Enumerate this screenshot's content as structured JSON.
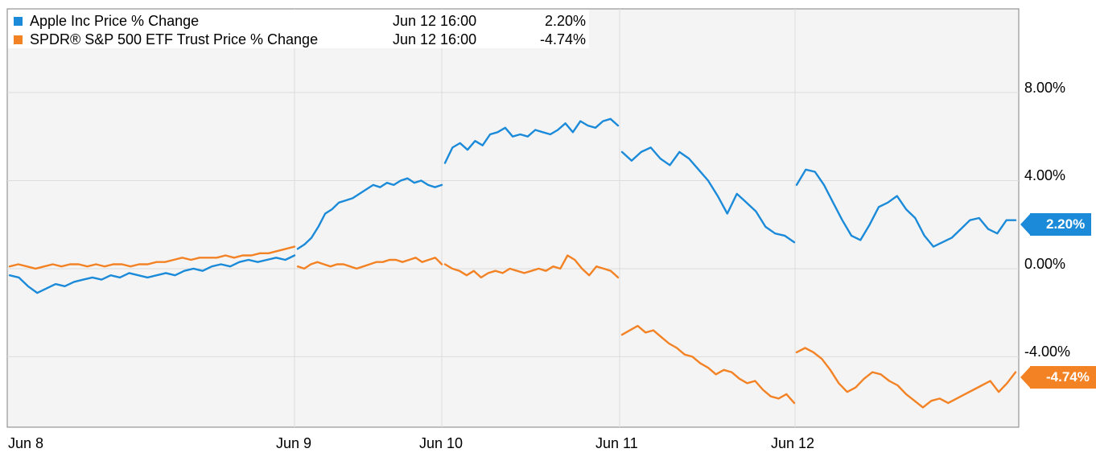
{
  "legend": [
    {
      "name": "Apple Inc Price % Change",
      "date": "Jun 12 16:00",
      "value": "2.20%",
      "color": "#1a8ad9"
    },
    {
      "name": "SPDR® S&P 500 ETF Trust Price % Change",
      "date": "Jun 12 16:00",
      "value": "-4.74%",
      "color": "#f38224"
    }
  ],
  "end_tags": {
    "aapl": "2.20%",
    "spy": "-4.74%"
  },
  "chart_data": {
    "type": "line",
    "ylim": [
      -7.2,
      11.8
    ],
    "yticks": [
      {
        "value": 8,
        "label": "8.00%"
      },
      {
        "value": 4,
        "label": "4.00%"
      },
      {
        "value": 0,
        "label": "0.00%"
      },
      {
        "value": -4,
        "label": "-4.00%"
      }
    ],
    "xticks": [
      "Jun 8",
      "Jun 9",
      "Jun 10",
      "Jun 11",
      "Jun 12"
    ],
    "grid": true,
    "series": [
      {
        "name": "Apple Inc Price % Change",
        "color": "#1a8ad9",
        "days": [
          [
            -0.3,
            -0.4,
            -0.8,
            -1.1,
            -0.9,
            -0.7,
            -0.8,
            -0.6,
            -0.5,
            -0.4,
            -0.5,
            -0.3,
            -0.4,
            -0.2,
            -0.3,
            -0.4,
            -0.3,
            -0.2,
            -0.3,
            -0.1,
            0.0,
            -0.1,
            0.1,
            0.2,
            0.1,
            0.3,
            0.4,
            0.3,
            0.4,
            0.5,
            0.4,
            0.6
          ],
          [
            0.9,
            1.1,
            1.4,
            1.9,
            2.5,
            2.7,
            3.0,
            3.1,
            3.2,
            3.4,
            3.6,
            3.8,
            3.7,
            3.9,
            3.8,
            4.0,
            4.1,
            3.9,
            4.0,
            3.8,
            3.7,
            3.8
          ],
          [
            4.8,
            5.5,
            5.7,
            5.4,
            5.8,
            5.6,
            6.1,
            6.2,
            6.4,
            6.0,
            6.1,
            6.0,
            6.3,
            6.2,
            6.1,
            6.3,
            6.6,
            6.2,
            6.7,
            6.5,
            6.4,
            6.7,
            6.8,
            6.5
          ],
          [
            5.3,
            4.9,
            5.3,
            5.5,
            5.0,
            4.7,
            5.3,
            5.0,
            4.5,
            4.0,
            3.3,
            2.5,
            3.4,
            3.0,
            2.6,
            1.9,
            1.6,
            1.5,
            1.2
          ],
          [
            3.8,
            4.5,
            4.4,
            3.8,
            3.0,
            2.2,
            1.5,
            1.3,
            2.0,
            2.8,
            3.0,
            3.3,
            2.7,
            2.3,
            1.5,
            1.0,
            1.2,
            1.4,
            1.8,
            2.2,
            2.3,
            1.8,
            1.6,
            2.2,
            2.2
          ]
        ]
      },
      {
        "name": "SPDR® S&P 500 ETF Trust Price % Change",
        "color": "#f38224",
        "days": [
          [
            0.1,
            0.2,
            0.1,
            0.0,
            0.1,
            0.2,
            0.1,
            0.2,
            0.2,
            0.1,
            0.2,
            0.1,
            0.2,
            0.2,
            0.1,
            0.2,
            0.2,
            0.3,
            0.3,
            0.4,
            0.5,
            0.4,
            0.5,
            0.5,
            0.5,
            0.6,
            0.5,
            0.6,
            0.6,
            0.7,
            0.7,
            0.8,
            0.9,
            1.0
          ],
          [
            0.1,
            0.0,
            0.2,
            0.3,
            0.2,
            0.1,
            0.2,
            0.2,
            0.1,
            0.0,
            0.1,
            0.2,
            0.3,
            0.3,
            0.4,
            0.4,
            0.3,
            0.4,
            0.5,
            0.3,
            0.4,
            0.5,
            0.2
          ],
          [
            0.2,
            0.0,
            -0.1,
            -0.3,
            -0.1,
            -0.4,
            -0.2,
            -0.1,
            -0.2,
            0.0,
            -0.1,
            -0.2,
            -0.1,
            0.0,
            -0.1,
            0.1,
            0.0,
            0.6,
            0.4,
            0.0,
            -0.3,
            0.1,
            0.0,
            -0.1,
            -0.4
          ],
          [
            -3.0,
            -2.8,
            -2.6,
            -2.9,
            -2.8,
            -3.1,
            -3.4,
            -3.6,
            -3.9,
            -4.0,
            -4.3,
            -4.5,
            -4.8,
            -4.6,
            -4.7,
            -5.0,
            -5.2,
            -5.1,
            -5.5,
            -5.8,
            -5.9,
            -5.7,
            -6.1
          ],
          [
            -3.8,
            -3.6,
            -3.8,
            -4.1,
            -4.6,
            -5.2,
            -5.6,
            -5.4,
            -5.0,
            -4.7,
            -4.8,
            -5.1,
            -5.3,
            -5.7,
            -6.0,
            -6.3,
            -6.0,
            -5.9,
            -6.1,
            -5.9,
            -5.7,
            -5.5,
            -5.3,
            -5.1,
            -5.6,
            -5.2,
            -4.7
          ]
        ]
      }
    ]
  }
}
